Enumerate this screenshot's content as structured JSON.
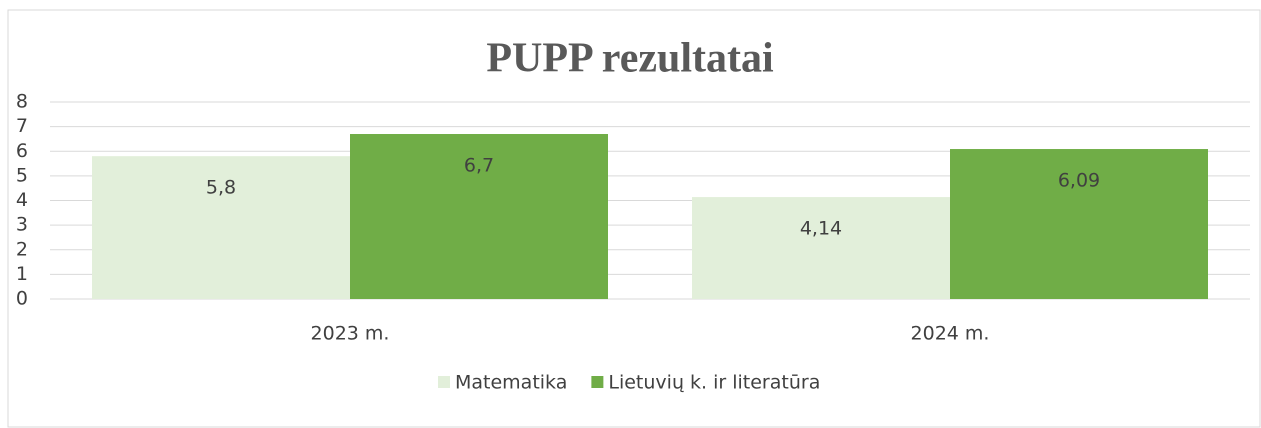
{
  "chart_data": {
    "type": "bar",
    "title": "PUPP rezultatai",
    "categories": [
      "2023 m.",
      "2024 m."
    ],
    "series": [
      {
        "name": "Matematika",
        "color": "#e2efda",
        "values": [
          5.8,
          4.14
        ],
        "value_labels": [
          "5,8",
          "4,14"
        ]
      },
      {
        "name": "Lietuvių k. ir literatūra",
        "color": "#70ad47",
        "values": [
          6.7,
          6.09
        ],
        "value_labels": [
          "6,7",
          "6,09"
        ]
      }
    ],
    "ylim": [
      0,
      8
    ],
    "yticks": [
      0,
      1,
      2,
      3,
      4,
      5,
      6,
      7,
      8
    ],
    "grid": true,
    "legend": "bottom"
  }
}
